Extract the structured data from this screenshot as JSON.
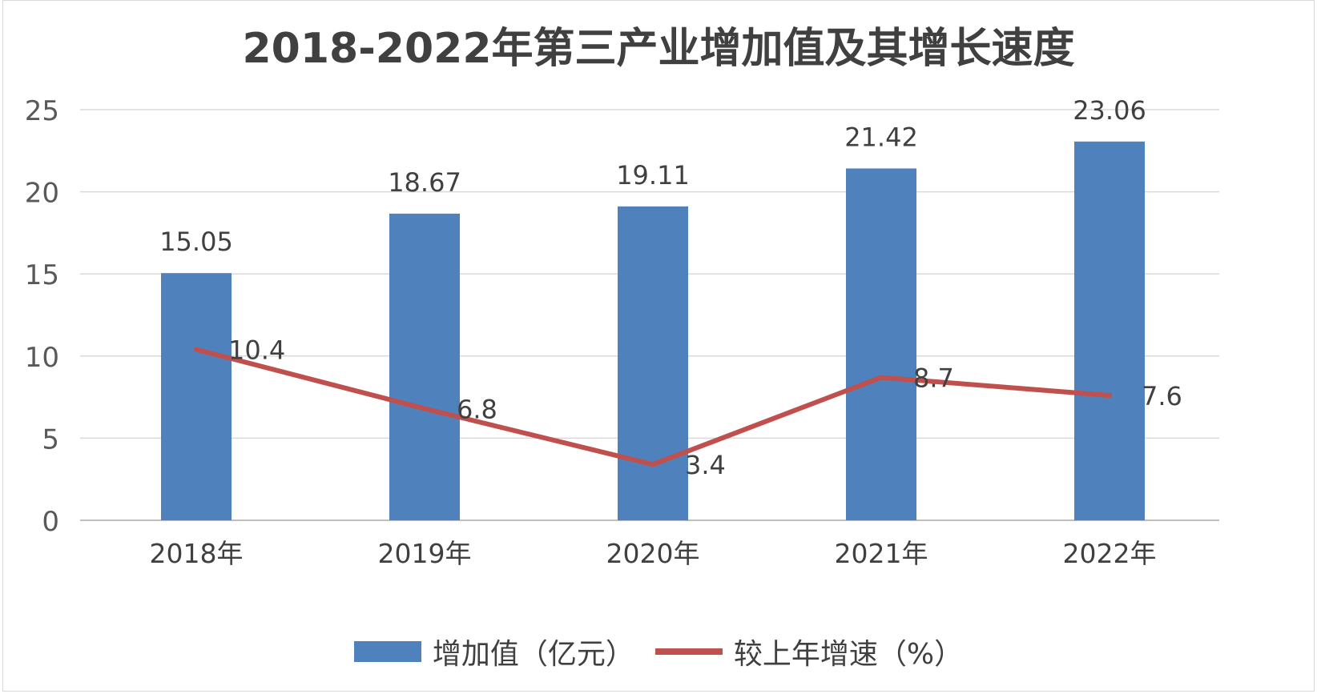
{
  "chart_data": {
    "type": "bar",
    "title": "2018-2022年第三产业增加值及其增长速度",
    "categories": [
      "2018年",
      "2019年",
      "2020年",
      "2021年",
      "2022年"
    ],
    "series": [
      {
        "name": "增加值（亿元）",
        "type": "bar",
        "values": [
          15.05,
          18.67,
          19.11,
          21.42,
          23.06
        ],
        "labels": [
          "15.05",
          "18.67",
          "19.11",
          "21.42",
          "23.06"
        ],
        "color": "#4f81bd"
      },
      {
        "name": "较上年增速（%）",
        "type": "line",
        "values": [
          10.4,
          6.8,
          3.4,
          8.7,
          7.6
        ],
        "labels": [
          "10.4",
          "6.8",
          "3.4",
          "8.7",
          "7.6"
        ],
        "color": "#c0504d"
      }
    ],
    "ylim": [
      0,
      25
    ],
    "yticks": [
      "0",
      "5",
      "10",
      "15",
      "20",
      "25"
    ],
    "grid": true,
    "legend_position": "bottom"
  }
}
